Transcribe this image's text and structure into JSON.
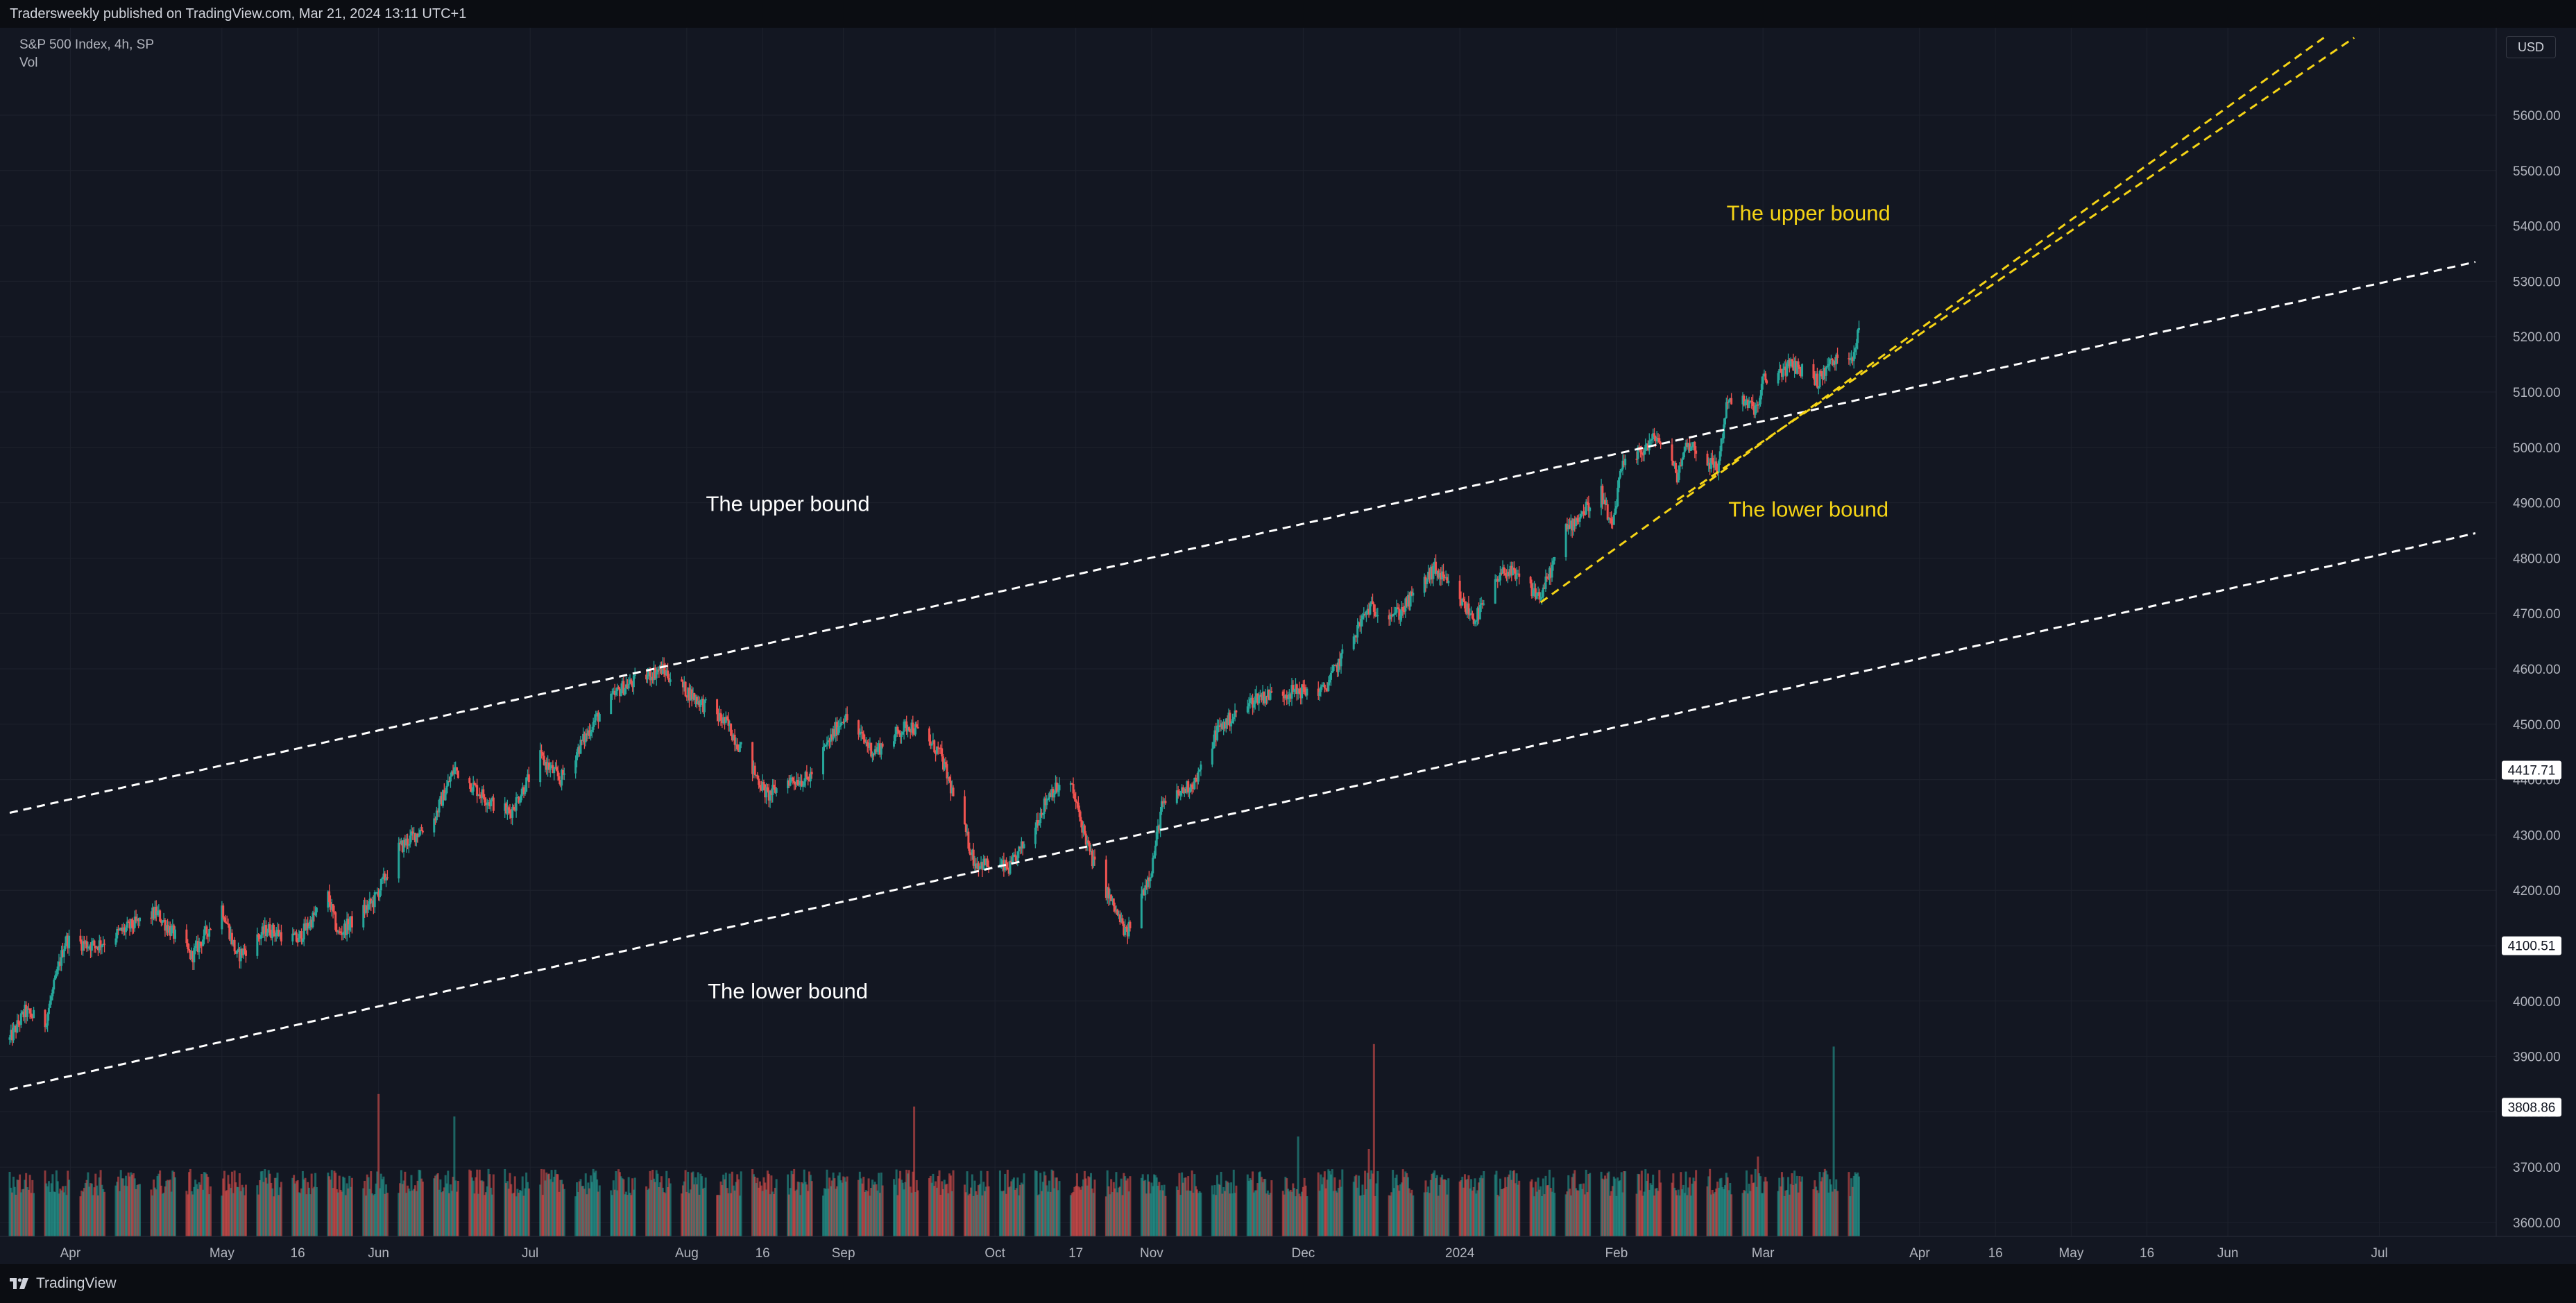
{
  "header": {
    "published_text": "Tradersweekly published on TradingView.com, Mar 21, 2024 13:11 UTC+1"
  },
  "symbol": {
    "title": "S&P 500 Index, 4h, SP",
    "indicator": "Vol"
  },
  "currency": "USD",
  "footer": {
    "brand": "TradingView"
  },
  "colors": {
    "background": "#131722",
    "up": "#26a69a",
    "down": "#ef5350",
    "white_trendline": "#ffffff",
    "yellow_trendline": "#f5d416",
    "price_badge_bg": "#ffffff"
  },
  "chart_data": {
    "type": "candlestick",
    "title": "S&P 500 Index, 4h, SP",
    "ylabel": "",
    "xlabel": "",
    "y_axis_side": "right",
    "ylim": [
      3565,
      5735
    ],
    "xlim": [
      "2023-03-20",
      "2024-07-20"
    ],
    "y_ticks": [
      "3600.00",
      "3700.00",
      "3800.00",
      "3900.00",
      "4000.00",
      "4100.00",
      "4200.00",
      "4300.00",
      "4400.00",
      "4500.00",
      "4600.00",
      "4700.00",
      "4800.00",
      "4900.00",
      "5000.00",
      "5100.00",
      "5200.00",
      "5300.00",
      "5400.00",
      "5500.00",
      "5600.00"
    ],
    "x_ticks": [
      {
        "date": "2023-04-01",
        "label": "Apr"
      },
      {
        "date": "2023-05-01",
        "label": "May"
      },
      {
        "date": "2023-05-16",
        "label": "16"
      },
      {
        "date": "2023-06-01",
        "label": "Jun"
      },
      {
        "date": "2023-07-01",
        "label": "Jul"
      },
      {
        "date": "2023-08-01",
        "label": "Aug"
      },
      {
        "date": "2023-08-16",
        "label": "16"
      },
      {
        "date": "2023-09-01",
        "label": "Sep"
      },
      {
        "date": "2023-10-01",
        "label": "Oct"
      },
      {
        "date": "2023-10-17",
        "label": "17"
      },
      {
        "date": "2023-11-01",
        "label": "Nov"
      },
      {
        "date": "2023-12-01",
        "label": "Dec"
      },
      {
        "date": "2024-01-01",
        "label": "2024"
      },
      {
        "date": "2024-02-01",
        "label": "Feb"
      },
      {
        "date": "2024-03-01",
        "label": "Mar"
      },
      {
        "date": "2024-04-01",
        "label": "Apr"
      },
      {
        "date": "2024-04-16",
        "label": "16"
      },
      {
        "date": "2024-05-01",
        "label": "May"
      },
      {
        "date": "2024-05-16",
        "label": "16"
      },
      {
        "date": "2024-06-01",
        "label": "Jun"
      },
      {
        "date": "2024-07-01",
        "label": "Jul"
      }
    ],
    "price_path": [
      [
        "2023-03-20",
        3930
      ],
      [
        "2023-03-23",
        3980
      ],
      [
        "2023-03-27",
        3960
      ],
      [
        "2023-03-31",
        4110
      ],
      [
        "2023-04-06",
        4100
      ],
      [
        "2023-04-14",
        4140
      ],
      [
        "2023-04-18",
        4160
      ],
      [
        "2023-04-25",
        4080
      ],
      [
        "2023-05-01",
        4170
      ],
      [
        "2023-05-04",
        4080
      ],
      [
        "2023-05-10",
        4130
      ],
      [
        "2023-05-16",
        4110
      ],
      [
        "2023-05-22",
        4190
      ],
      [
        "2023-05-24",
        4120
      ],
      [
        "2023-05-31",
        4180
      ],
      [
        "2023-06-05",
        4275
      ],
      [
        "2023-06-12",
        4330
      ],
      [
        "2023-06-16",
        4420
      ],
      [
        "2023-06-23",
        4360
      ],
      [
        "2023-06-27",
        4340
      ],
      [
        "2023-07-03",
        4440
      ],
      [
        "2023-07-07",
        4400
      ],
      [
        "2023-07-14",
        4510
      ],
      [
        "2023-07-19",
        4565
      ],
      [
        "2023-07-27",
        4600
      ],
      [
        "2023-08-01",
        4560
      ],
      [
        "2023-08-09",
        4500
      ],
      [
        "2023-08-17",
        4370
      ],
      [
        "2023-08-21",
        4400
      ],
      [
        "2023-08-25",
        4400
      ],
      [
        "2023-09-01",
        4515
      ],
      [
        "2023-09-07",
        4450
      ],
      [
        "2023-09-14",
        4500
      ],
      [
        "2023-09-20",
        4450
      ],
      [
        "2023-09-27",
        4250
      ],
      [
        "2023-10-04",
        4240
      ],
      [
        "2023-10-09",
        4320
      ],
      [
        "2023-10-12",
        4380
      ],
      [
        "2023-10-16",
        4390
      ],
      [
        "2023-10-20",
        4260
      ],
      [
        "2023-10-27",
        4120
      ],
      [
        "2023-11-01",
        4240
      ],
      [
        "2023-11-03",
        4350
      ],
      [
        "2023-11-10",
        4400
      ],
      [
        "2023-11-14",
        4490
      ],
      [
        "2023-11-22",
        4550
      ],
      [
        "2023-11-30",
        4560
      ],
      [
        "2023-12-05",
        4560
      ],
      [
        "2023-12-14",
        4710
      ],
      [
        "2023-12-20",
        4700
      ],
      [
        "2023-12-27",
        4780
      ],
      [
        "2024-01-04",
        4690
      ],
      [
        "2024-01-10",
        4780
      ],
      [
        "2024-01-17",
        4730
      ],
      [
        "2024-01-22",
        4850
      ],
      [
        "2024-01-29",
        4920
      ],
      [
        "2024-01-31",
        4850
      ],
      [
        "2024-02-02",
        4960
      ],
      [
        "2024-02-09",
        5020
      ],
      [
        "2024-02-13",
        4950
      ],
      [
        "2024-02-15",
        5010
      ],
      [
        "2024-02-21",
        4960
      ],
      [
        "2024-02-23",
        5090
      ],
      [
        "2024-02-29",
        5070
      ],
      [
        "2024-03-01",
        5120
      ],
      [
        "2024-03-07",
        5150
      ],
      [
        "2024-03-12",
        5120
      ],
      [
        "2024-03-14",
        5150
      ],
      [
        "2024-03-19",
        5170
      ],
      [
        "2024-03-20",
        5225
      ]
    ],
    "volume_scale_max": 100,
    "volume_spikes": [
      {
        "date": "2023-06-01",
        "value": 57
      },
      {
        "date": "2023-06-16",
        "value": 48
      },
      {
        "date": "2023-09-15",
        "value": 52
      },
      {
        "date": "2023-12-15",
        "value": 77
      },
      {
        "date": "2023-11-30",
        "value": 40
      },
      {
        "date": "2023-12-14",
        "value": 35
      },
      {
        "date": "2024-03-15",
        "value": 76
      },
      {
        "date": "2024-02-29",
        "value": 32
      }
    ],
    "trendlines": [
      {
        "color": "white",
        "start": [
          "2023-03-20",
          4340
        ],
        "end": [
          "2024-07-20",
          5335
        ]
      },
      {
        "color": "white",
        "start": [
          "2023-03-20",
          3840
        ],
        "end": [
          "2024-07-20",
          4845
        ]
      },
      {
        "color": "yellow",
        "start": [
          "2024-01-17",
          4720
        ],
        "end": [
          "2024-06-20",
          5740
        ]
      },
      {
        "color": "yellow",
        "start": [
          "2024-02-13",
          4905
        ],
        "end": [
          "2024-06-26",
          5740
        ]
      }
    ],
    "annotations": [
      {
        "text": "The upper bound",
        "color": "white",
        "at": [
          "2023-08-21",
          4885
        ]
      },
      {
        "text": "The lower bound",
        "color": "white",
        "at": [
          "2023-08-21",
          4005
        ]
      },
      {
        "text": "The upper bound",
        "color": "yellow",
        "at": [
          "2024-03-10",
          5410
        ]
      },
      {
        "text": "The lower bound",
        "color": "yellow",
        "at": [
          "2024-03-10",
          4875
        ]
      }
    ],
    "price_labels": [
      "4417.71",
      "4100.51",
      "3808.86"
    ]
  }
}
